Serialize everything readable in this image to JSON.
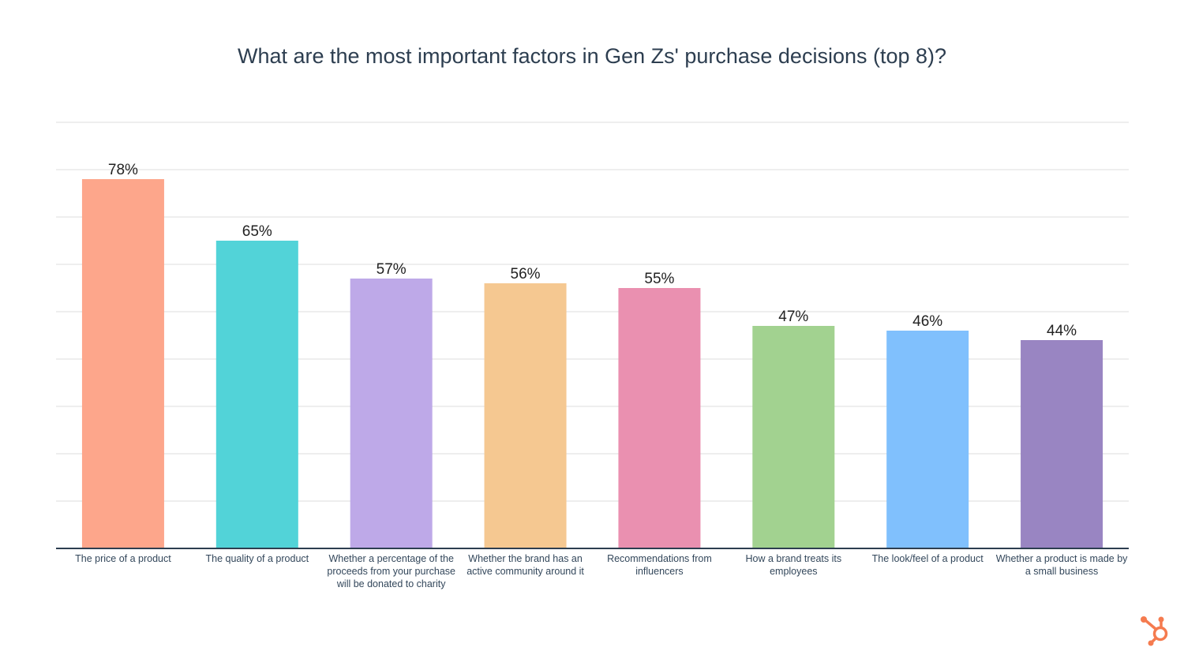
{
  "chart_data": {
    "type": "bar",
    "title": "What are the most important factors in Gen Zs' purchase decisions (top 8)?",
    "categories": [
      "The price of a product",
      "The quality of a product",
      "Whether a percentage of the proceeds from your purchase will be donated to charity",
      "Whether the brand has an active community around it",
      "Recommendations from influencers",
      "How a brand treats its employees",
      "The look/feel of a product",
      "Whether a product is made by a small business"
    ],
    "values": [
      78,
      65,
      57,
      56,
      55,
      47,
      46,
      44
    ],
    "data_labels": [
      "78%",
      "65%",
      "57%",
      "56%",
      "55%",
      "47%",
      "46%",
      "44%"
    ],
    "colors": [
      "#FDA68B",
      "#52D3D8",
      "#BEA9E8",
      "#F5C891",
      "#EA90B0",
      "#A2D290",
      "#80C0FD",
      "#9985C2"
    ],
    "ylim": [
      0,
      90
    ],
    "grid": true,
    "xlabel": "",
    "ylabel": ""
  },
  "brand": {
    "logo": "hubspot-sprocket",
    "color": "#F57B4F"
  }
}
